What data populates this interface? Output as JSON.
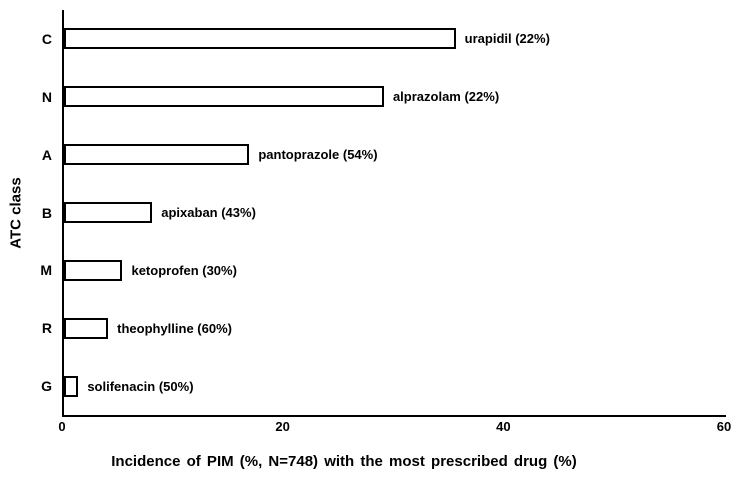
{
  "chart_data": {
    "type": "bar",
    "orientation": "horizontal",
    "title": "",
    "xlabel": "Incidence of PIM (%, N=748) with the most prescribed drug (%)",
    "ylabel": "ATC class",
    "xlim": [
      0,
      60
    ],
    "xticks": [
      0,
      20,
      40,
      60
    ],
    "grid": false,
    "legend": "none",
    "bar_fill_color": "#ffffff",
    "bar_border_color": "#000000",
    "axis_color": "#000000",
    "categories": [
      "C",
      "N",
      "A",
      "B",
      "M",
      "R",
      "G"
    ],
    "values": [
      35.5,
      29.0,
      16.8,
      8.0,
      5.3,
      4.0,
      1.3
    ],
    "bar_labels": [
      "urapidil (22%)",
      "alprazolam (22%)",
      "pantoprazole (54%)",
      "apixaban (43%)",
      "ketoprofen (30%)",
      "theophylline (60%)",
      "solifenacin (50%)"
    ]
  }
}
